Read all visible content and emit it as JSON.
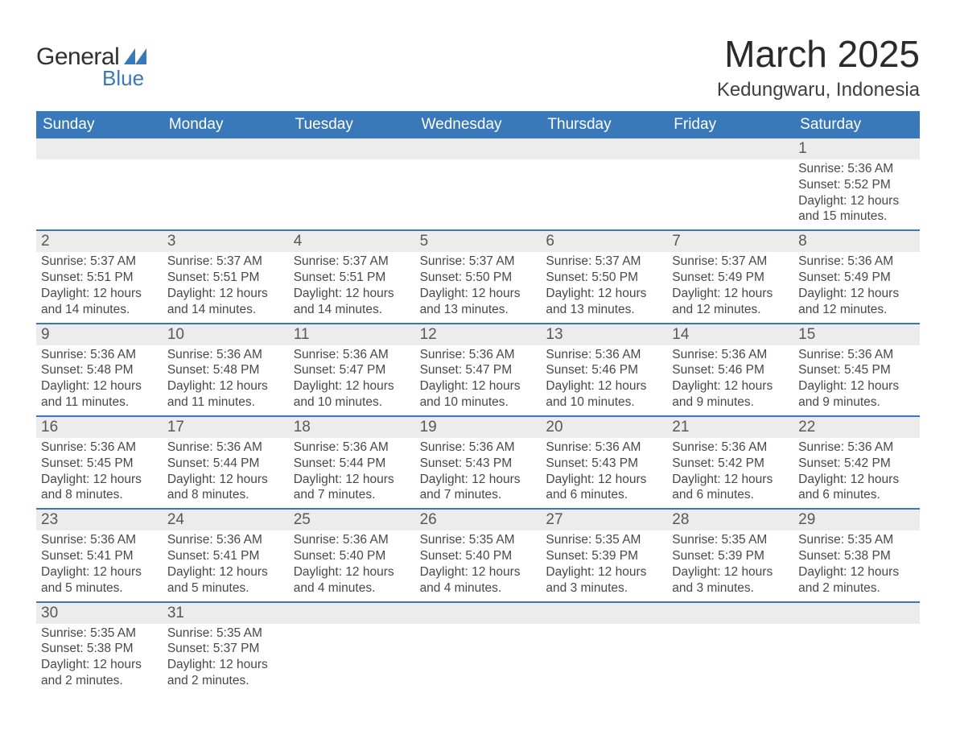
{
  "logo": {
    "text_top": "General",
    "text_bottom": "Blue",
    "shape_color": "#3978b9",
    "text_top_color": "#303030"
  },
  "title": "March 2025",
  "location": "Kedungwaru, Indonesia",
  "colors": {
    "header_bg": "#3978b9",
    "header_fg": "#ffffff",
    "daynum_bg": "#ececec",
    "row_sep": "#3978b9",
    "text": "#404040",
    "background": "#ffffff"
  },
  "typography": {
    "title_fontsize": 46,
    "location_fontsize": 24,
    "dayname_fontsize": 19,
    "daynum_fontsize": 19,
    "body_fontsize": 15.5
  },
  "layout": {
    "columns": 7,
    "weeks": 6
  },
  "day_names": [
    "Sunday",
    "Monday",
    "Tuesday",
    "Wednesday",
    "Thursday",
    "Friday",
    "Saturday"
  ],
  "weeks": [
    [
      {
        "n": "",
        "sunrise": "",
        "sunset": "",
        "daylight": ""
      },
      {
        "n": "",
        "sunrise": "",
        "sunset": "",
        "daylight": ""
      },
      {
        "n": "",
        "sunrise": "",
        "sunset": "",
        "daylight": ""
      },
      {
        "n": "",
        "sunrise": "",
        "sunset": "",
        "daylight": ""
      },
      {
        "n": "",
        "sunrise": "",
        "sunset": "",
        "daylight": ""
      },
      {
        "n": "",
        "sunrise": "",
        "sunset": "",
        "daylight": ""
      },
      {
        "n": "1",
        "sunrise": "Sunrise: 5:36 AM",
        "sunset": "Sunset: 5:52 PM",
        "daylight": "Daylight: 12 hours and 15 minutes."
      }
    ],
    [
      {
        "n": "2",
        "sunrise": "Sunrise: 5:37 AM",
        "sunset": "Sunset: 5:51 PM",
        "daylight": "Daylight: 12 hours and 14 minutes."
      },
      {
        "n": "3",
        "sunrise": "Sunrise: 5:37 AM",
        "sunset": "Sunset: 5:51 PM",
        "daylight": "Daylight: 12 hours and 14 minutes."
      },
      {
        "n": "4",
        "sunrise": "Sunrise: 5:37 AM",
        "sunset": "Sunset: 5:51 PM",
        "daylight": "Daylight: 12 hours and 14 minutes."
      },
      {
        "n": "5",
        "sunrise": "Sunrise: 5:37 AM",
        "sunset": "Sunset: 5:50 PM",
        "daylight": "Daylight: 12 hours and 13 minutes."
      },
      {
        "n": "6",
        "sunrise": "Sunrise: 5:37 AM",
        "sunset": "Sunset: 5:50 PM",
        "daylight": "Daylight: 12 hours and 13 minutes."
      },
      {
        "n": "7",
        "sunrise": "Sunrise: 5:37 AM",
        "sunset": "Sunset: 5:49 PM",
        "daylight": "Daylight: 12 hours and 12 minutes."
      },
      {
        "n": "8",
        "sunrise": "Sunrise: 5:36 AM",
        "sunset": "Sunset: 5:49 PM",
        "daylight": "Daylight: 12 hours and 12 minutes."
      }
    ],
    [
      {
        "n": "9",
        "sunrise": "Sunrise: 5:36 AM",
        "sunset": "Sunset: 5:48 PM",
        "daylight": "Daylight: 12 hours and 11 minutes."
      },
      {
        "n": "10",
        "sunrise": "Sunrise: 5:36 AM",
        "sunset": "Sunset: 5:48 PM",
        "daylight": "Daylight: 12 hours and 11 minutes."
      },
      {
        "n": "11",
        "sunrise": "Sunrise: 5:36 AM",
        "sunset": "Sunset: 5:47 PM",
        "daylight": "Daylight: 12 hours and 10 minutes."
      },
      {
        "n": "12",
        "sunrise": "Sunrise: 5:36 AM",
        "sunset": "Sunset: 5:47 PM",
        "daylight": "Daylight: 12 hours and 10 minutes."
      },
      {
        "n": "13",
        "sunrise": "Sunrise: 5:36 AM",
        "sunset": "Sunset: 5:46 PM",
        "daylight": "Daylight: 12 hours and 10 minutes."
      },
      {
        "n": "14",
        "sunrise": "Sunrise: 5:36 AM",
        "sunset": "Sunset: 5:46 PM",
        "daylight": "Daylight: 12 hours and 9 minutes."
      },
      {
        "n": "15",
        "sunrise": "Sunrise: 5:36 AM",
        "sunset": "Sunset: 5:45 PM",
        "daylight": "Daylight: 12 hours and 9 minutes."
      }
    ],
    [
      {
        "n": "16",
        "sunrise": "Sunrise: 5:36 AM",
        "sunset": "Sunset: 5:45 PM",
        "daylight": "Daylight: 12 hours and 8 minutes."
      },
      {
        "n": "17",
        "sunrise": "Sunrise: 5:36 AM",
        "sunset": "Sunset: 5:44 PM",
        "daylight": "Daylight: 12 hours and 8 minutes."
      },
      {
        "n": "18",
        "sunrise": "Sunrise: 5:36 AM",
        "sunset": "Sunset: 5:44 PM",
        "daylight": "Daylight: 12 hours and 7 minutes."
      },
      {
        "n": "19",
        "sunrise": "Sunrise: 5:36 AM",
        "sunset": "Sunset: 5:43 PM",
        "daylight": "Daylight: 12 hours and 7 minutes."
      },
      {
        "n": "20",
        "sunrise": "Sunrise: 5:36 AM",
        "sunset": "Sunset: 5:43 PM",
        "daylight": "Daylight: 12 hours and 6 minutes."
      },
      {
        "n": "21",
        "sunrise": "Sunrise: 5:36 AM",
        "sunset": "Sunset: 5:42 PM",
        "daylight": "Daylight: 12 hours and 6 minutes."
      },
      {
        "n": "22",
        "sunrise": "Sunrise: 5:36 AM",
        "sunset": "Sunset: 5:42 PM",
        "daylight": "Daylight: 12 hours and 6 minutes."
      }
    ],
    [
      {
        "n": "23",
        "sunrise": "Sunrise: 5:36 AM",
        "sunset": "Sunset: 5:41 PM",
        "daylight": "Daylight: 12 hours and 5 minutes."
      },
      {
        "n": "24",
        "sunrise": "Sunrise: 5:36 AM",
        "sunset": "Sunset: 5:41 PM",
        "daylight": "Daylight: 12 hours and 5 minutes."
      },
      {
        "n": "25",
        "sunrise": "Sunrise: 5:36 AM",
        "sunset": "Sunset: 5:40 PM",
        "daylight": "Daylight: 12 hours and 4 minutes."
      },
      {
        "n": "26",
        "sunrise": "Sunrise: 5:35 AM",
        "sunset": "Sunset: 5:40 PM",
        "daylight": "Daylight: 12 hours and 4 minutes."
      },
      {
        "n": "27",
        "sunrise": "Sunrise: 5:35 AM",
        "sunset": "Sunset: 5:39 PM",
        "daylight": "Daylight: 12 hours and 3 minutes."
      },
      {
        "n": "28",
        "sunrise": "Sunrise: 5:35 AM",
        "sunset": "Sunset: 5:39 PM",
        "daylight": "Daylight: 12 hours and 3 minutes."
      },
      {
        "n": "29",
        "sunrise": "Sunrise: 5:35 AM",
        "sunset": "Sunset: 5:38 PM",
        "daylight": "Daylight: 12 hours and 2 minutes."
      }
    ],
    [
      {
        "n": "30",
        "sunrise": "Sunrise: 5:35 AM",
        "sunset": "Sunset: 5:38 PM",
        "daylight": "Daylight: 12 hours and 2 minutes."
      },
      {
        "n": "31",
        "sunrise": "Sunrise: 5:35 AM",
        "sunset": "Sunset: 5:37 PM",
        "daylight": "Daylight: 12 hours and 2 minutes."
      },
      {
        "n": "",
        "sunrise": "",
        "sunset": "",
        "daylight": ""
      },
      {
        "n": "",
        "sunrise": "",
        "sunset": "",
        "daylight": ""
      },
      {
        "n": "",
        "sunrise": "",
        "sunset": "",
        "daylight": ""
      },
      {
        "n": "",
        "sunrise": "",
        "sunset": "",
        "daylight": ""
      },
      {
        "n": "",
        "sunrise": "",
        "sunset": "",
        "daylight": ""
      }
    ]
  ]
}
